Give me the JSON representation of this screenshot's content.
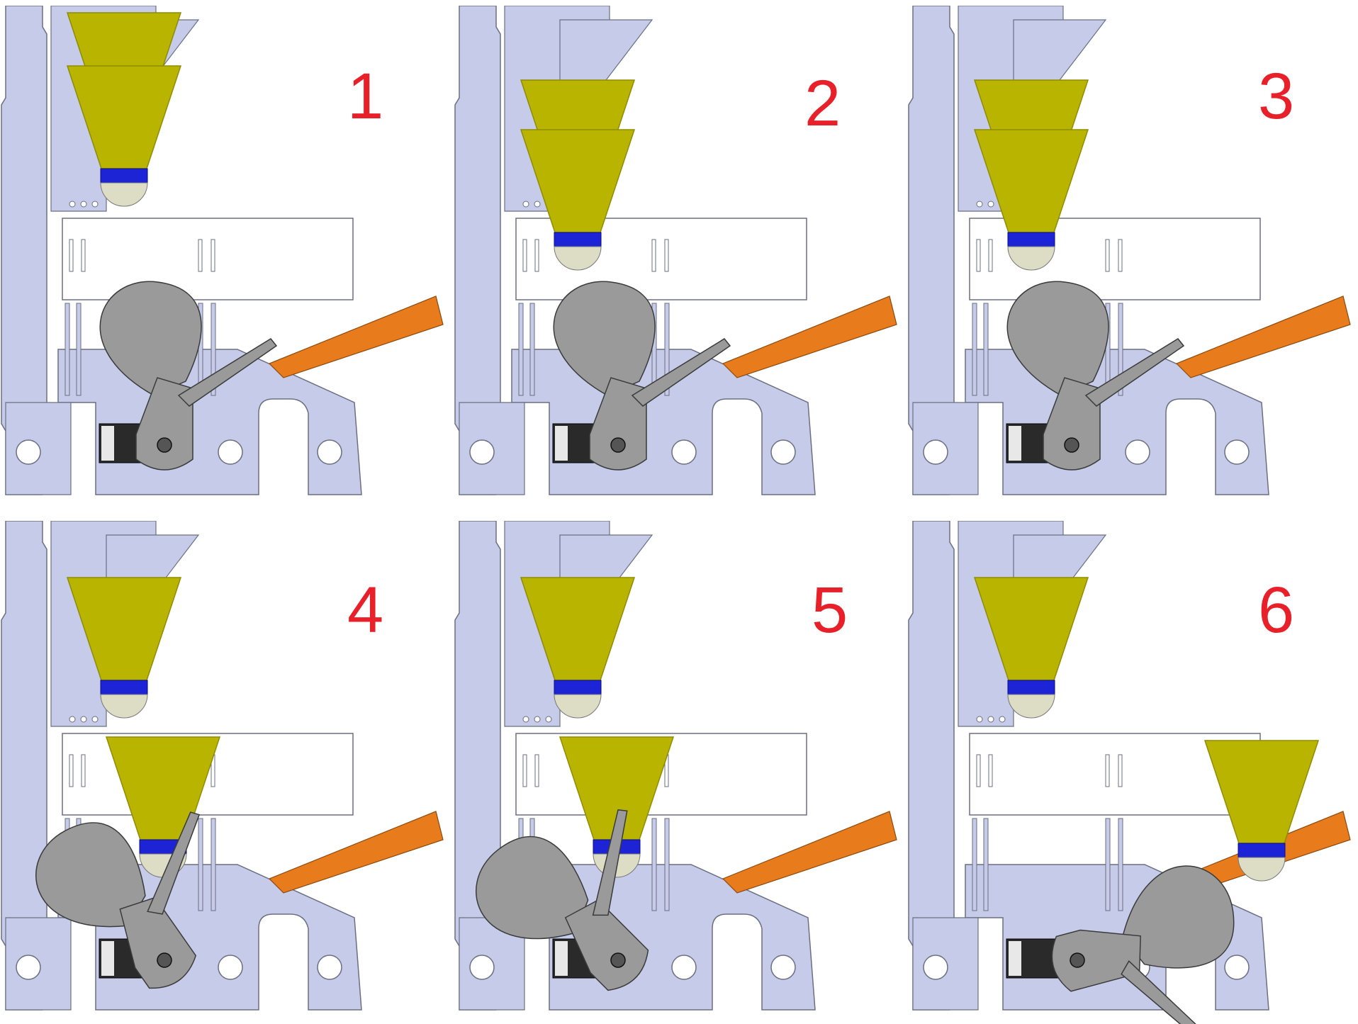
{
  "figure": {
    "style": {
      "frame_color": "#c5cbe8",
      "frame_stroke": "#6b6f80",
      "cone_color": "#b8b400",
      "cone_shade": "#8f8c00",
      "band_color": "#1d24d6",
      "ball_color": "#ddddc6",
      "arm_color": "#9a9a9a",
      "arm_stroke": "#3a3a3a",
      "chute_color": "#e87b1c",
      "box_color": "#ffffff",
      "servo_color": "#2a2a2a",
      "step_number_color": "#e8202a"
    },
    "panels": [
      {
        "step": "1",
        "arm_pose": "rest",
        "stack": "two",
        "drop": "none"
      },
      {
        "step": "2",
        "arm_pose": "rest",
        "stack": "two-lowered",
        "drop": "none"
      },
      {
        "step": "3",
        "arm_pose": "rest",
        "stack": "two-lowered",
        "drop": "none"
      },
      {
        "step": "4",
        "arm_pose": "swing",
        "stack": "one",
        "drop": "falling"
      },
      {
        "step": "5",
        "arm_pose": "swing-more",
        "stack": "one",
        "drop": "falling"
      },
      {
        "step": "6",
        "arm_pose": "released",
        "stack": "one",
        "drop": "chute"
      }
    ]
  }
}
